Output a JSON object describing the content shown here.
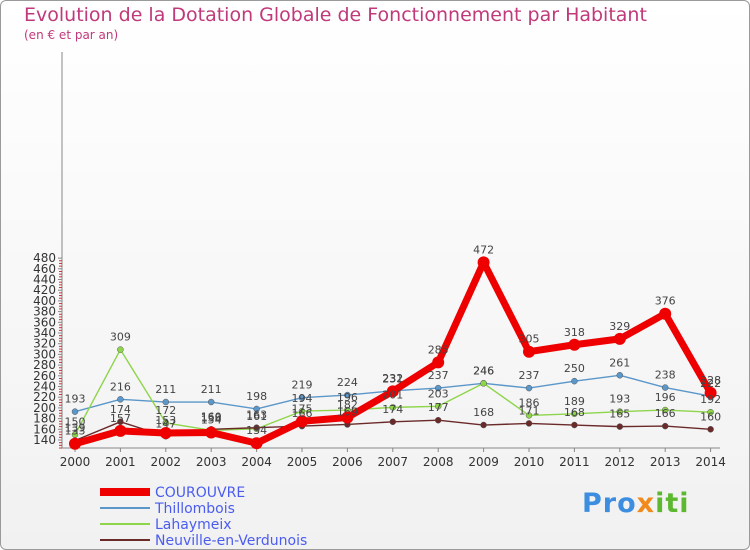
{
  "title": "Evolution de la Dotation Globale de Fonctionnement par Habitant",
  "subtitle": "(en € et par an)",
  "logo": "Proxiti",
  "chart_data": {
    "type": "line",
    "title": "Evolution de la Dotation Globale de Fonctionnement par Habitant",
    "ylabel": "(en € et par an)",
    "x": [
      2000,
      2001,
      2002,
      2003,
      2004,
      2005,
      2006,
      2007,
      2008,
      2009,
      2010,
      2011,
      2012,
      2013,
      2014
    ],
    "yticks": [
      140,
      160,
      180,
      200,
      220,
      240,
      260,
      280,
      300,
      320,
      340,
      360,
      380,
      400,
      420,
      440,
      460,
      480
    ],
    "ylim": [
      120,
      480
    ],
    "grid": false,
    "series": [
      {
        "name": "COUROUVRE",
        "color": "#ee0000",
        "values": [
          133,
          157,
          153,
          154,
          134,
          175,
          182,
          231,
          285,
          472,
          305,
          318,
          329,
          376,
          228
        ]
      },
      {
        "name": "Thillombois",
        "color": "#5b97c9",
        "values": [
          193,
          216,
          211,
          211,
          198,
          219,
          224,
          232,
          237,
          246,
          237,
          250,
          261,
          238,
          222
        ]
      },
      {
        "name": "Lahaymeix",
        "color": "#8ed54b",
        "values": [
          150,
          309,
          172,
          158,
          161,
          194,
          196,
          201,
          203,
          246,
          186,
          189,
          193,
          196,
          192
        ]
      },
      {
        "name": "Neuville-en-Verdunois",
        "color": "#6b2a2a",
        "values": [
          139,
          174,
          147,
          160,
          163,
          166,
          169,
          174,
          177,
          168,
          171,
          168,
          165,
          166,
          160
        ]
      }
    ],
    "legend_position": "bottom-left"
  }
}
